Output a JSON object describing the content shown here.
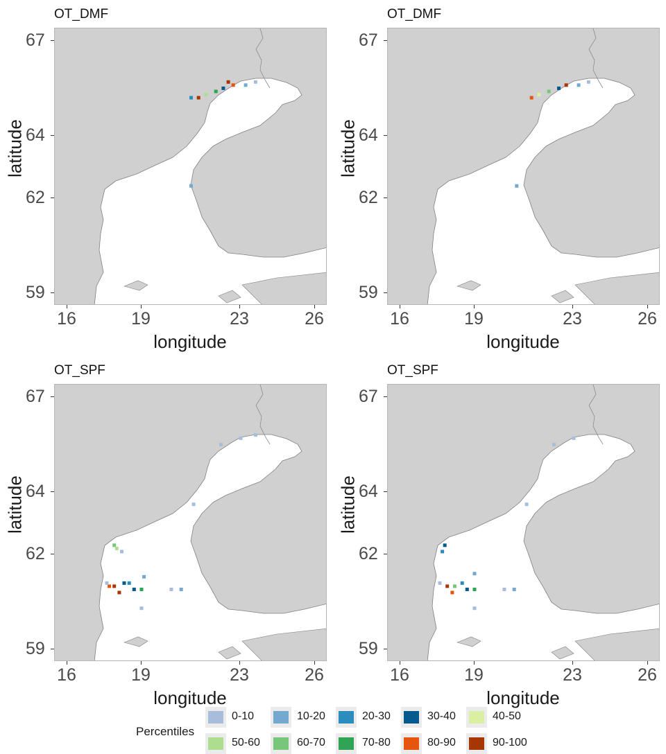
{
  "chart_data": [
    {
      "type": "heatmap",
      "title": "OT_DMF",
      "xlabel": "longitude",
      "ylabel": "latitude",
      "xlim": [
        15.5,
        26.5
      ],
      "ylim": [
        58.6,
        67.4
      ],
      "xticks": [
        "16",
        "19",
        "23",
        "26"
      ],
      "yticks": [
        "67",
        "64",
        "62",
        "59"
      ],
      "cells": [
        {
          "lon": 22.5,
          "lat": 65.7,
          "class": "90-100"
        },
        {
          "lon": 22.7,
          "lat": 65.6,
          "class": "80-90"
        },
        {
          "lon": 22.3,
          "lat": 65.5,
          "class": "30-40"
        },
        {
          "lon": 22.0,
          "lat": 65.4,
          "class": "70-80"
        },
        {
          "lon": 21.6,
          "lat": 65.3,
          "class": "50-60"
        },
        {
          "lon": 21.3,
          "lat": 65.2,
          "class": "90-100"
        },
        {
          "lon": 21.0,
          "lat": 65.2,
          "class": "20-30"
        },
        {
          "lon": 23.2,
          "lat": 65.6,
          "class": "10-20"
        },
        {
          "lon": 23.6,
          "lat": 65.7,
          "class": "0-10"
        },
        {
          "lon": 21.0,
          "lat": 62.4,
          "class": "10-20"
        }
      ]
    },
    {
      "type": "heatmap",
      "title": "OT_DMF",
      "xlabel": "longitude",
      "ylabel": "latitude",
      "xlim": [
        15.5,
        26.5
      ],
      "ylim": [
        58.6,
        67.4
      ],
      "xticks": [
        "16",
        "19",
        "23",
        "26"
      ],
      "yticks": [
        "67",
        "64",
        "62",
        "59"
      ],
      "cells": [
        {
          "lon": 22.7,
          "lat": 65.6,
          "class": "90-100"
        },
        {
          "lon": 22.4,
          "lat": 65.5,
          "class": "30-40"
        },
        {
          "lon": 22.0,
          "lat": 65.4,
          "class": "60-70"
        },
        {
          "lon": 21.6,
          "lat": 65.3,
          "class": "40-50"
        },
        {
          "lon": 21.3,
          "lat": 65.2,
          "class": "80-90"
        },
        {
          "lon": 23.2,
          "lat": 65.6,
          "class": "10-20"
        },
        {
          "lon": 23.6,
          "lat": 65.7,
          "class": "0-10"
        },
        {
          "lon": 20.7,
          "lat": 62.4,
          "class": "10-20"
        }
      ]
    },
    {
      "type": "heatmap",
      "title": "OT_SPF",
      "xlabel": "longitude",
      "ylabel": "latitude",
      "xlim": [
        15.5,
        26.5
      ],
      "ylim": [
        58.6,
        67.4
      ],
      "xticks": [
        "16",
        "19",
        "23",
        "26"
      ],
      "yticks": [
        "67",
        "64",
        "62",
        "59"
      ],
      "cells": [
        {
          "lon": 17.9,
          "lat": 62.3,
          "class": "60-70"
        },
        {
          "lon": 18.0,
          "lat": 62.2,
          "class": "50-60"
        },
        {
          "lon": 17.7,
          "lat": 61.0,
          "class": "80-90"
        },
        {
          "lon": 17.9,
          "lat": 61.0,
          "class": "90-100"
        },
        {
          "lon": 18.1,
          "lat": 60.8,
          "class": "90-100"
        },
        {
          "lon": 18.3,
          "lat": 61.1,
          "class": "30-40"
        },
        {
          "lon": 18.7,
          "lat": 60.9,
          "class": "30-40"
        },
        {
          "lon": 19.0,
          "lat": 60.9,
          "class": "70-80"
        },
        {
          "lon": 18.5,
          "lat": 61.1,
          "class": "20-30"
        },
        {
          "lon": 19.1,
          "lat": 61.3,
          "class": "10-20"
        },
        {
          "lon": 20.2,
          "lat": 60.9,
          "class": "0-10"
        },
        {
          "lon": 20.6,
          "lat": 60.9,
          "class": "10-20"
        },
        {
          "lon": 17.6,
          "lat": 61.1,
          "class": "0-10"
        },
        {
          "lon": 18.2,
          "lat": 62.1,
          "class": "0-10"
        },
        {
          "lon": 21.1,
          "lat": 63.6,
          "class": "0-10"
        },
        {
          "lon": 23.0,
          "lat": 65.7,
          "class": "0-10"
        },
        {
          "lon": 23.6,
          "lat": 65.8,
          "class": "0-10"
        },
        {
          "lon": 22.2,
          "lat": 65.5,
          "class": "0-10"
        },
        {
          "lon": 19.0,
          "lat": 60.3,
          "class": "0-10"
        }
      ]
    },
    {
      "type": "heatmap",
      "title": "OT_SPF",
      "xlabel": "longitude",
      "ylabel": "latitude",
      "xlim": [
        15.5,
        26.5
      ],
      "ylim": [
        58.6,
        67.4
      ],
      "xticks": [
        "16",
        "19",
        "23",
        "26"
      ],
      "yticks": [
        "67",
        "64",
        "62",
        "59"
      ],
      "cells": [
        {
          "lon": 17.8,
          "lat": 62.3,
          "class": "30-40"
        },
        {
          "lon": 17.7,
          "lat": 62.1,
          "class": "20-30"
        },
        {
          "lon": 17.9,
          "lat": 61.0,
          "class": "90-100"
        },
        {
          "lon": 18.1,
          "lat": 60.8,
          "class": "80-90"
        },
        {
          "lon": 18.2,
          "lat": 61.0,
          "class": "60-70"
        },
        {
          "lon": 18.7,
          "lat": 60.9,
          "class": "30-40"
        },
        {
          "lon": 19.0,
          "lat": 60.9,
          "class": "70-80"
        },
        {
          "lon": 18.5,
          "lat": 61.1,
          "class": "20-30"
        },
        {
          "lon": 19.0,
          "lat": 61.4,
          "class": "10-20"
        },
        {
          "lon": 20.2,
          "lat": 60.9,
          "class": "0-10"
        },
        {
          "lon": 20.6,
          "lat": 60.9,
          "class": "10-20"
        },
        {
          "lon": 17.6,
          "lat": 61.1,
          "class": "0-10"
        },
        {
          "lon": 21.1,
          "lat": 63.6,
          "class": "0-10"
        },
        {
          "lon": 23.0,
          "lat": 65.7,
          "class": "0-10"
        },
        {
          "lon": 22.2,
          "lat": 65.5,
          "class": "0-10"
        },
        {
          "lon": 19.0,
          "lat": 60.3,
          "class": "0-10"
        }
      ]
    }
  ],
  "legend": {
    "title": "Percentiles",
    "items": [
      {
        "label": "0-10",
        "color": "#a6bddb"
      },
      {
        "label": "10-20",
        "color": "#74a9cf"
      },
      {
        "label": "20-30",
        "color": "#2b8cbe"
      },
      {
        "label": "30-40",
        "color": "#045a8d"
      },
      {
        "label": "40-50",
        "color": "#d9f0a3"
      },
      {
        "label": "50-60",
        "color": "#addd8e"
      },
      {
        "label": "60-70",
        "color": "#78c679"
      },
      {
        "label": "70-80",
        "color": "#31a354"
      },
      {
        "label": "80-90",
        "color": "#e6550d"
      },
      {
        "label": "90-100",
        "color": "#a63603"
      }
    ]
  },
  "colors": {
    "land": "#d0d0d0",
    "sea": "#ffffff",
    "coast": "#7f7f7f"
  }
}
